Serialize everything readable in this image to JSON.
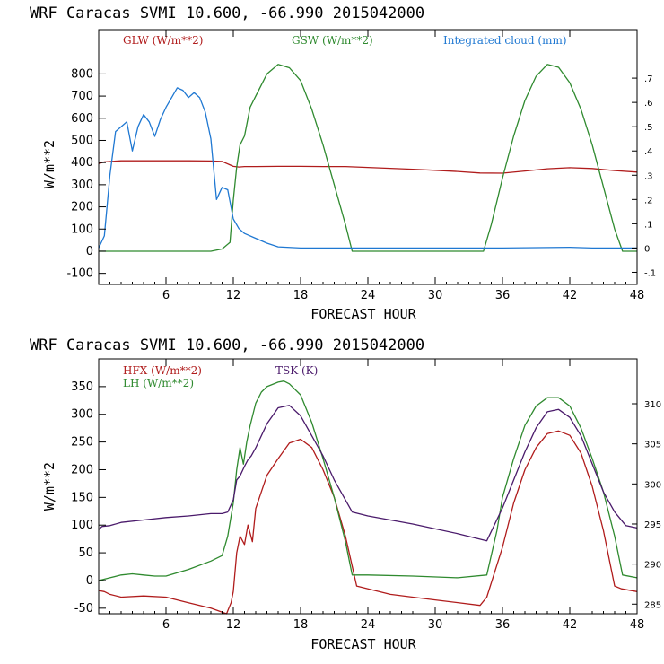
{
  "chart_data": [
    {
      "type": "line",
      "title": "WRF   Caracas SVMI  10.600, -66.990  2015042000",
      "xlabel": "FORECAST HOUR",
      "ylabel": "W/m**2",
      "xlim": [
        0,
        48
      ],
      "ylim": [
        -150,
        1000
      ],
      "y2lim": [
        -0.15,
        0.9
      ],
      "xticks": [
        6,
        12,
        18,
        24,
        30,
        36,
        42,
        48
      ],
      "yticks": [
        -100,
        0,
        100,
        200,
        300,
        400,
        500,
        600,
        700,
        800
      ],
      "y2ticks": [
        -0.1,
        0,
        0.1,
        0.2,
        0.3,
        0.4,
        0.5,
        0.6,
        0.7
      ],
      "y2ticklabels": [
        "-.1",
        "0",
        ".1",
        ".2",
        ".3",
        ".4",
        ".5",
        ".6",
        ".7"
      ],
      "series": [
        {
          "name": "GLW (W/m**2)",
          "color": "#b01c1c",
          "axis": "left",
          "x": [
            0,
            0.5,
            2,
            4,
            6,
            8,
            10,
            11,
            12,
            12.5,
            13,
            14,
            16,
            18,
            20,
            22,
            24,
            26,
            28,
            30,
            32,
            34,
            36,
            38,
            40,
            42,
            44,
            46,
            48
          ],
          "values": [
            395,
            403,
            408,
            408,
            408,
            408,
            407,
            405,
            383,
            380,
            382,
            382,
            383,
            383,
            382,
            382,
            378,
            374,
            370,
            365,
            360,
            353,
            352,
            362,
            372,
            377,
            373,
            364,
            357
          ]
        },
        {
          "name": "GSW (W/m**2)",
          "color": "#2f8a2f",
          "axis": "left",
          "x": [
            0,
            10,
            11,
            11.7,
            12,
            12.3,
            12.6,
            13,
            13.5,
            14,
            15,
            16,
            17,
            18,
            19,
            20,
            21,
            22,
            22.6,
            24,
            30,
            34.3,
            35,
            36,
            37,
            38,
            39,
            40,
            41,
            42,
            43,
            44,
            45,
            46,
            46.7,
            48
          ],
          "values": [
            0,
            0,
            10,
            40,
            230,
            380,
            480,
            520,
            650,
            700,
            800,
            843,
            828,
            770,
            640,
            480,
            300,
            120,
            0,
            0,
            0,
            0,
            120,
            330,
            520,
            680,
            790,
            843,
            830,
            760,
            640,
            480,
            290,
            100,
            0,
            0
          ]
        },
        {
          "name": "Integrated cloud (mm)",
          "color": "#1f78d2",
          "axis": "right",
          "x": [
            0,
            0.5,
            1,
            1.5,
            2,
            2.5,
            3,
            3.5,
            4,
            4.5,
            5,
            5.5,
            6,
            6.5,
            7,
            7.5,
            8,
            8.5,
            9,
            9.5,
            10,
            10.5,
            11,
            11.5,
            12,
            12.5,
            13,
            14,
            15,
            16,
            18,
            24,
            30,
            36,
            42,
            44,
            48
          ],
          "values": [
            0,
            0.05,
            0.3,
            0.48,
            0.5,
            0.52,
            0.4,
            0.5,
            0.55,
            0.52,
            0.46,
            0.53,
            0.58,
            0.62,
            0.66,
            0.65,
            0.62,
            0.64,
            0.62,
            0.56,
            0.45,
            0.2,
            0.25,
            0.24,
            0.12,
            0.08,
            0.06,
            0.04,
            0.02,
            0.005,
            0,
            0,
            0,
            0,
            0.003,
            0,
            0
          ]
        }
      ]
    },
    {
      "type": "line",
      "title": "WRF   Caracas SVMI  10.600, -66.990  2015042000",
      "xlabel": "FORECAST HOUR",
      "ylabel": "W/m**2",
      "xlim": [
        0,
        48
      ],
      "ylim": [
        -60,
        400
      ],
      "y2lim": [
        283.8,
        315.6
      ],
      "xticks": [
        6,
        12,
        18,
        24,
        30,
        36,
        42,
        48
      ],
      "yticks": [
        -50,
        0,
        50,
        100,
        150,
        200,
        250,
        300,
        350
      ],
      "y2ticks": [
        285,
        290,
        295,
        300,
        305,
        310
      ],
      "y2ticklabels": [
        "285",
        "290",
        "295",
        "300",
        "305",
        "310"
      ],
      "series": [
        {
          "name": "HFX (W/m**2)",
          "color": "#b01c1c",
          "axis": "left",
          "x": [
            0,
            0.5,
            1,
            2,
            4,
            6,
            8,
            10,
            11.4,
            11.8,
            12,
            12.3,
            12.6,
            13,
            13.3,
            13.7,
            14,
            15,
            16,
            17,
            18,
            19,
            20,
            21,
            22,
            23,
            26,
            30,
            34,
            34.6,
            36,
            37,
            38,
            39,
            40,
            41,
            42,
            43,
            44,
            45,
            46,
            46.6,
            48
          ],
          "values": [
            -18,
            -20,
            -25,
            -30,
            -28,
            -30,
            -40,
            -50,
            -60,
            -40,
            -20,
            50,
            80,
            65,
            100,
            70,
            130,
            190,
            220,
            248,
            255,
            240,
            200,
            150,
            80,
            -10,
            -25,
            -35,
            -45,
            -30,
            60,
            140,
            200,
            240,
            265,
            270,
            262,
            230,
            170,
            90,
            -10,
            -15,
            -20
          ]
        },
        {
          "name": "LH (W/m**2)",
          "color": "#2f8a2f",
          "axis": "left",
          "x": [
            0,
            1,
            2,
            3,
            4,
            5,
            6,
            8,
            10,
            11,
            11.5,
            12,
            12.3,
            12.6,
            12.9,
            13.2,
            13.5,
            14,
            14.5,
            15,
            16,
            16.5,
            17,
            18,
            19,
            20,
            21,
            22,
            22.6,
            24,
            28,
            32,
            34.6,
            35.5,
            36,
            37,
            38,
            39,
            40,
            41,
            42,
            43,
            44,
            45,
            46,
            46.7,
            48
          ],
          "values": [
            0,
            5,
            10,
            12,
            10,
            8,
            8,
            20,
            35,
            45,
            80,
            140,
            200,
            240,
            210,
            250,
            280,
            320,
            340,
            350,
            358,
            360,
            355,
            335,
            285,
            220,
            150,
            70,
            10,
            10,
            8,
            5,
            10,
            90,
            150,
            220,
            280,
            315,
            330,
            330,
            315,
            275,
            220,
            160,
            80,
            10,
            5
          ]
        },
        {
          "name": "TSK (K)",
          "color": "#4a1a6b",
          "axis": "right",
          "x": [
            0,
            0.3,
            1,
            2,
            4,
            6,
            8,
            10,
            11,
            11.5,
            12,
            12.3,
            12.6,
            13,
            13.3,
            13.6,
            14,
            15,
            16,
            17,
            18,
            19,
            20,
            21,
            22,
            22.6,
            24,
            28,
            32,
            34.6,
            36,
            37,
            38,
            39,
            40,
            41,
            42,
            43,
            44,
            45,
            46,
            47,
            48
          ],
          "values": [
            294.3,
            294.7,
            294.8,
            295.2,
            295.5,
            295.8,
            296.0,
            296.3,
            296.3,
            296.5,
            298.0,
            300.5,
            301.0,
            302.2,
            303.0,
            303.5,
            304.5,
            307.5,
            309.5,
            309.8,
            308.5,
            306.0,
            303.5,
            300.5,
            298.0,
            296.5,
            296.0,
            295.0,
            293.8,
            292.9,
            297.0,
            300.5,
            304.0,
            307.0,
            309.0,
            309.3,
            308.3,
            306.0,
            302.5,
            299.0,
            296.5,
            294.8,
            294.5
          ]
        }
      ]
    }
  ]
}
